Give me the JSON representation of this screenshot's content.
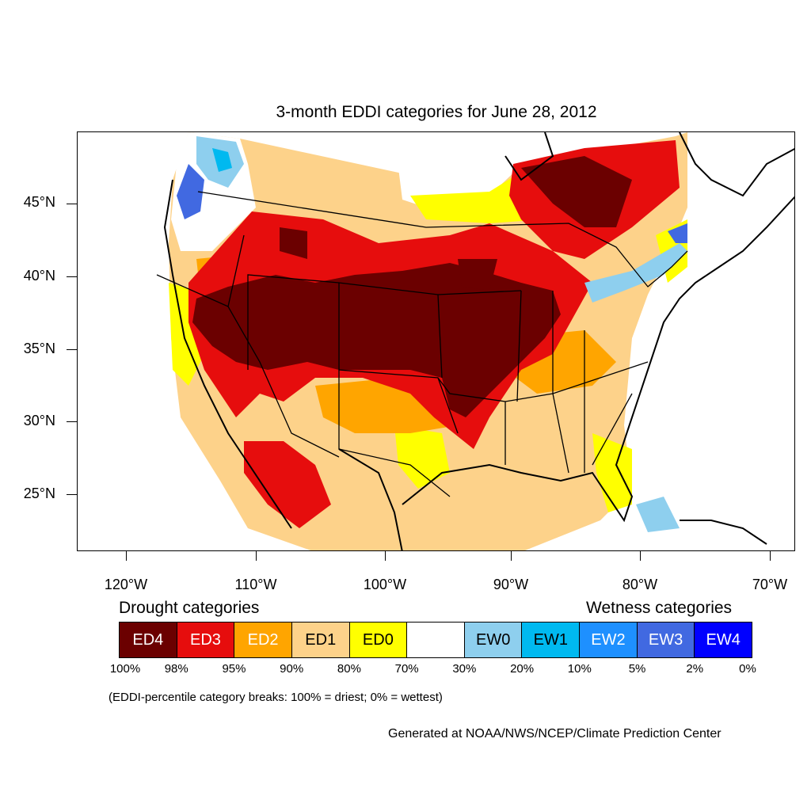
{
  "title": "3-month EDDI categories for June 28, 2012",
  "y_axis_labels": [
    "45°N",
    "40°N",
    "35°N",
    "30°N",
    "25°N"
  ],
  "x_axis_labels": [
    "120°W",
    "110°W",
    "100°W",
    "90°W",
    "80°W",
    "70°W"
  ],
  "legend": {
    "drought_heading": "Drought categories",
    "wetness_heading": "Wetness categories",
    "categories": [
      {
        "label": "ED4",
        "color": "#6b0000",
        "text_color": "#ffffff"
      },
      {
        "label": "ED3",
        "color": "#e60d0d",
        "text_color": "#ffffff"
      },
      {
        "label": "ED2",
        "color": "#ffa500",
        "text_color": "#ffffff"
      },
      {
        "label": "ED1",
        "color": "#fdd28a",
        "text_color": "#000000"
      },
      {
        "label": "ED0",
        "color": "#ffff00",
        "text_color": "#000000"
      },
      {
        "label": "",
        "color": "#ffffff",
        "text_color": "#000000"
      },
      {
        "label": "EW0",
        "color": "#8ecfee",
        "text_color": "#000000"
      },
      {
        "label": "EW1",
        "color": "#00b9f0",
        "text_color": "#000000"
      },
      {
        "label": "EW2",
        "color": "#1e90ff",
        "text_color": "#ffffff"
      },
      {
        "label": "EW3",
        "color": "#4169e1",
        "text_color": "#ffffff"
      },
      {
        "label": "EW4",
        "color": "#0000ff",
        "text_color": "#ffffff"
      }
    ],
    "percentile_breaks": [
      "100%",
      "98%",
      "95%",
      "90%",
      "80%",
      "70%",
      "30%",
      "20%",
      "10%",
      "5%",
      "2%",
      "0%"
    ]
  },
  "note": "(EDDI-percentile category breaks: 100% = driest; 0% = wettest)",
  "credit": "Generated at NOAA/NWS/NCEP/Climate Prediction Center"
}
